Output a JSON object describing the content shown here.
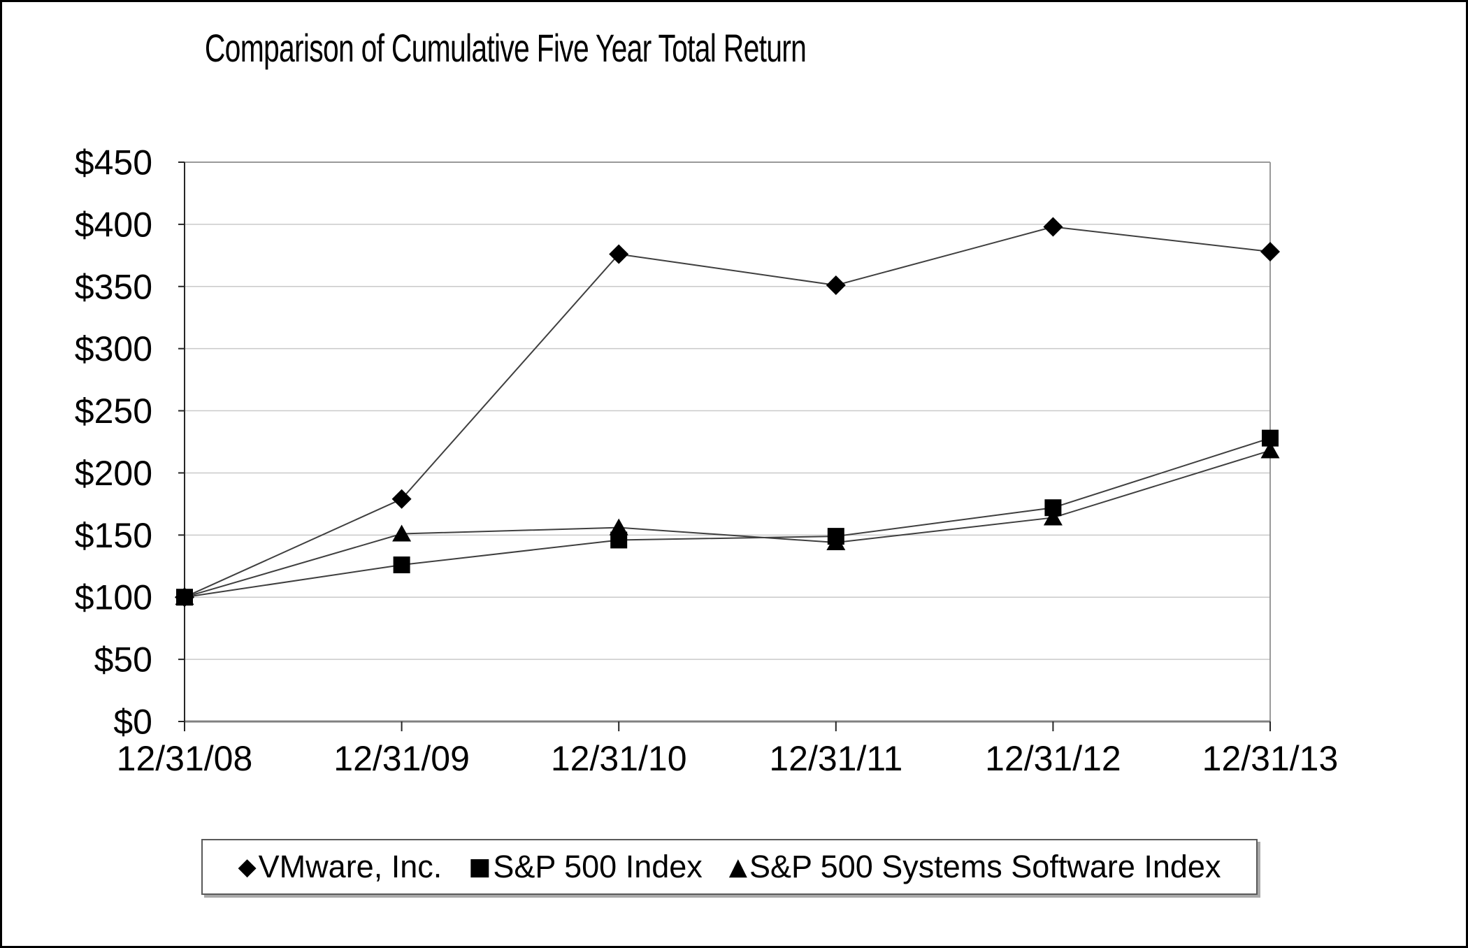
{
  "title": "Comparison of Cumulative Five Year Total Return",
  "chart_data": {
    "type": "line",
    "title": "Comparison of Cumulative Five Year Total Return",
    "categories": [
      "12/31/08",
      "12/31/09",
      "12/31/10",
      "12/31/11",
      "12/31/12",
      "12/31/13"
    ],
    "series": [
      {
        "name": "VMware, Inc.",
        "marker": "diamond",
        "glyph": "◆",
        "values": [
          100,
          179,
          376,
          351,
          398,
          378
        ]
      },
      {
        "name": "S&P 500 Index",
        "marker": "square",
        "glyph": "■",
        "values": [
          100,
          126,
          146,
          149,
          172,
          228
        ]
      },
      {
        "name": "S&P 500 Systems Software Index",
        "marker": "triangle",
        "glyph": "▲",
        "values": [
          100,
          151,
          156,
          144,
          164,
          218
        ]
      }
    ],
    "yticks": [
      {
        "label": "$450",
        "value": 450
      },
      {
        "label": "$400",
        "value": 400
      },
      {
        "label": "$350",
        "value": 350
      },
      {
        "label": "$300",
        "value": 300
      },
      {
        "label": "$250",
        "value": 250
      },
      {
        "label": "$200",
        "value": 200
      },
      {
        "label": "$150",
        "value": 150
      },
      {
        "label": "$100",
        "value": 100
      },
      {
        "label": "$50",
        "value": 50
      },
      {
        "label": "$0",
        "value": 0
      }
    ],
    "ylim": [
      0,
      450
    ],
    "xlabel": "",
    "ylabel": "",
    "grid": "horizontal",
    "legend_position": "bottom",
    "colors": {
      "background": "#ffffff",
      "line": "#3f3f3f",
      "marker": "#000000",
      "grid": "#c9c9c9",
      "border": "#999999",
      "axis": "#808080",
      "axis_dark": "#262626",
      "text": "#000000"
    }
  }
}
